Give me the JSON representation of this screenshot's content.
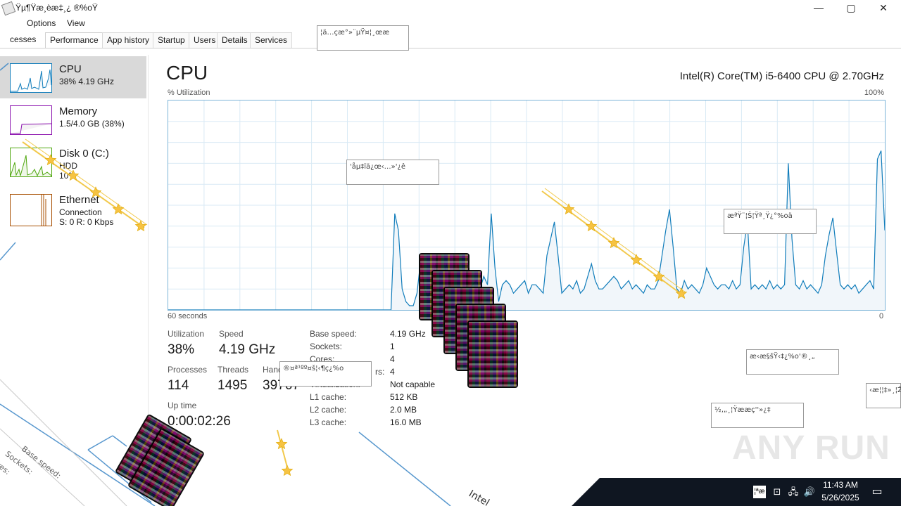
{
  "window": {
    "title": "Ÿµ¶Ÿæ¸èæ‡¸¿ ®%oŸ",
    "controls": {
      "minimize": "—",
      "maximize": "▢",
      "close": "✕"
    }
  },
  "menu": [
    "Options",
    "View"
  ],
  "tabs": [
    "Processes",
    "Performance",
    "App history",
    "Startup",
    "Users",
    "Details",
    "Services"
  ],
  "tab_partial": "cesses",
  "sidebar": {
    "items": [
      {
        "name": "CPU",
        "sub1": "38%  4.19 GHz",
        "sub2": ""
      },
      {
        "name": "Memory",
        "sub1": "1.5/4.0 GB (38%)",
        "sub2": ""
      },
      {
        "name": "Disk 0 (C:)",
        "sub1": "HDD",
        "sub2": "10%"
      },
      {
        "name": "Ethernet",
        "sub1": "Connection",
        "sub2": "S: 0 R: 0 Kbps"
      }
    ]
  },
  "main": {
    "title": "CPU",
    "model": "Intel(R) Core(TM) i5-6400 CPU @ 2.70GHz",
    "util_label": "% Utilization",
    "max_label": "100%",
    "x_left": "60 seconds",
    "x_right": "0"
  },
  "stats": {
    "utilization_label": "Utilization",
    "utilization": "38%",
    "speed_label": "Speed",
    "speed": "4.19 GHz",
    "processes_label": "Processes",
    "processes": "114",
    "threads_label": "Threads",
    "threads": "1495",
    "handles_label": "Hand",
    "handles": "39767",
    "uptime_label": "Up time",
    "uptime": "0:00:02:26"
  },
  "details": [
    {
      "label": "Base speed:",
      "value": "4.19 GHz"
    },
    {
      "label": "Sockets:",
      "value": "1"
    },
    {
      "label": "Cores:",
      "value": "4"
    },
    {
      "label": "rs:",
      "value": "4"
    },
    {
      "label": "Virtualization:",
      "value": "Not capable"
    },
    {
      "label": "L1 cache:",
      "value": "512 KB"
    },
    {
      "label": "L2 cache:",
      "value": "2.0 MB"
    },
    {
      "label": "L3 cache:",
      "value": "16.0 MB"
    }
  ],
  "garbled_boxes": [
    "¦ä…çæ°»¨µŸ¤¦¸œæ",
    "'åµ‡ïä¿œ‹…»'¿ê",
    "æªŸ¨¦Š¦Ÿª¸Ÿ¿°%oä",
    "®¤ª¹ºº¤š¦‹¶ç¿%o",
    "æ‹æ§šŸ‹‡¿%o'®¸„",
    "½‚„¸¦Ÿææç''»¿‡",
    "‹æ¦¦‡»¸¦Ž"
  ],
  "cpu_history": [
    0,
    0,
    0,
    0,
    0,
    0,
    0,
    0,
    0,
    0,
    0,
    0,
    0,
    0,
    0,
    0,
    0,
    0,
    0,
    0,
    0,
    0,
    0,
    0,
    0,
    0,
    0,
    0,
    0,
    0,
    0,
    0,
    0,
    0,
    0,
    0,
    0,
    0,
    0,
    0,
    0,
    0,
    0,
    0,
    0,
    0,
    0,
    0,
    0,
    0,
    0,
    0,
    0,
    0,
    0,
    0,
    0,
    0,
    0,
    0,
    0,
    46,
    38,
    10,
    4,
    2,
    2,
    8,
    24,
    10,
    6,
    12,
    22,
    10,
    14,
    22,
    12,
    10,
    22,
    12,
    16,
    10,
    12,
    14,
    10,
    16,
    12,
    46,
    20,
    4,
    12,
    14,
    12,
    8,
    10,
    12,
    14,
    8,
    12,
    12,
    10,
    8,
    26,
    34,
    42,
    26,
    8,
    10,
    12,
    10,
    14,
    8,
    10,
    16,
    22,
    14,
    10,
    10,
    12,
    14,
    16,
    14,
    10,
    12,
    14,
    10,
    12,
    10,
    8,
    12,
    10,
    10,
    14,
    26,
    38,
    48,
    30,
    10,
    8,
    14,
    10,
    12,
    10,
    8,
    12,
    20,
    16,
    12,
    10,
    12,
    12,
    10,
    14,
    10,
    12,
    30,
    42,
    10,
    12,
    10,
    12,
    10,
    14,
    10,
    12,
    10,
    12,
    70,
    34,
    12,
    10,
    14,
    10,
    12,
    10,
    8,
    12,
    26,
    36,
    44,
    28,
    12,
    10,
    12,
    10,
    12,
    8,
    10,
    12,
    14,
    10,
    72,
    76,
    38
  ],
  "taskbar": {
    "time": "11:43 AM",
    "date": "5/26/2025",
    "ime": "¦ªæ"
  },
  "watermark": "ANY RUN",
  "colors": {
    "cpu": "#117dbb",
    "memory": "#8b12ae",
    "disk": "#4da60c",
    "ethernet": "#a74f01",
    "graph_fill": "#f1f6fa",
    "graph_border": "#7db4d8"
  }
}
